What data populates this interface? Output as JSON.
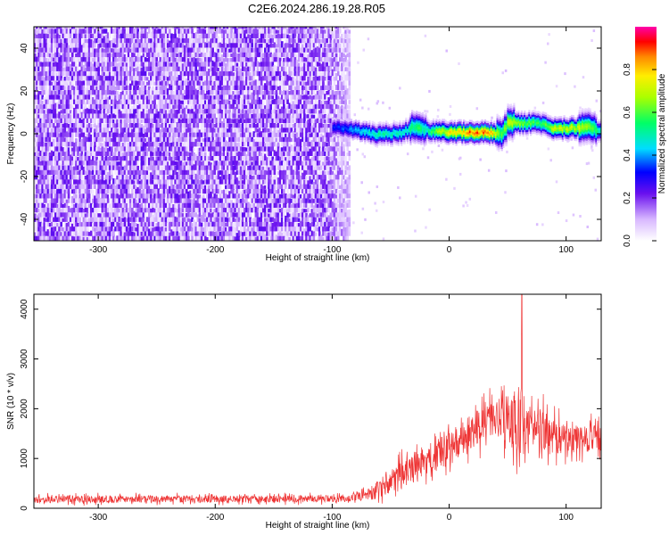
{
  "title": "C2E6.2024.286.19.28.R05",
  "colors": {
    "snr_line": "#ee3333",
    "background": "#ffffff",
    "axis": "#000000",
    "spectrogram_noise": "#6a1aee"
  },
  "chart_data": [
    {
      "type": "heatmap",
      "name": "spectrogram",
      "xlabel": "Height of straight line (km)",
      "ylabel": "Frequency (Hz)",
      "xlim": [
        -355,
        130
      ],
      "ylim": [
        -50,
        50
      ],
      "xticks": [
        -300,
        -200,
        -100,
        0,
        100
      ],
      "xtick_labels": [
        "-300",
        "-200",
        "-100",
        "0",
        "100"
      ],
      "yticks": [
        -40,
        -20,
        0,
        20,
        40
      ],
      "ytick_labels": [
        "-40",
        "-20",
        "0",
        "20",
        "40"
      ],
      "grid": false,
      "noise_region_x": [
        -355,
        -85
      ],
      "signal_band": {
        "x": [
          -100,
          -80,
          -60,
          -40,
          -30,
          -20,
          0,
          20,
          35,
          45,
          50,
          60,
          75,
          90,
          110,
          120,
          130
        ],
        "center_hz": [
          3,
          1,
          -1,
          0,
          3,
          1,
          0,
          0,
          0,
          -1,
          5,
          4,
          5,
          2,
          2,
          3,
          0
        ],
        "peak_amplitude": [
          0.35,
          0.45,
          0.55,
          0.5,
          0.6,
          0.55,
          0.85,
          0.95,
          0.9,
          0.6,
          0.75,
          0.7,
          0.6,
          0.75,
          0.75,
          0.7,
          0.5
        ]
      },
      "colorbar": {
        "label": "Normalized spectral amplitude",
        "range": [
          0,
          1
        ],
        "ticks": [
          0.0,
          0.2,
          0.4,
          0.6,
          0.8
        ],
        "tick_labels": [
          "0.0",
          "0.2",
          "0.4",
          "0.6",
          "0.8"
        ]
      }
    },
    {
      "type": "line",
      "name": "snr",
      "xlabel": "Height of straight line (km)",
      "ylabel": "SNR (10 * v/v)",
      "xlim": [
        -355,
        130
      ],
      "ylim": [
        0,
        4300
      ],
      "xticks": [
        -300,
        -200,
        -100,
        0,
        100
      ],
      "xtick_labels": [
        "-300",
        "-200",
        "-100",
        "0",
        "100"
      ],
      "yticks": [
        0,
        1000,
        2000,
        3000,
        4000
      ],
      "ytick_labels": [
        "0",
        "1000",
        "2000",
        "3000",
        "4000"
      ],
      "grid": false,
      "envelope": {
        "x": [
          -355,
          -100,
          -80,
          -60,
          -40,
          -20,
          0,
          20,
          40,
          50,
          60,
          70,
          80,
          90,
          100,
          110,
          120,
          130
        ],
        "mean": [
          180,
          190,
          220,
          380,
          700,
          950,
          1200,
          1550,
          1850,
          1800,
          1700,
          1600,
          1550,
          1450,
          1400,
          1380,
          1420,
          1400
        ],
        "spread": [
          130,
          130,
          150,
          350,
          500,
          550,
          600,
          650,
          700,
          900,
          1200,
          1000,
          800,
          650,
          550,
          500,
          550,
          500
        ]
      },
      "peak": {
        "x": 62,
        "y": 4300
      }
    }
  ]
}
